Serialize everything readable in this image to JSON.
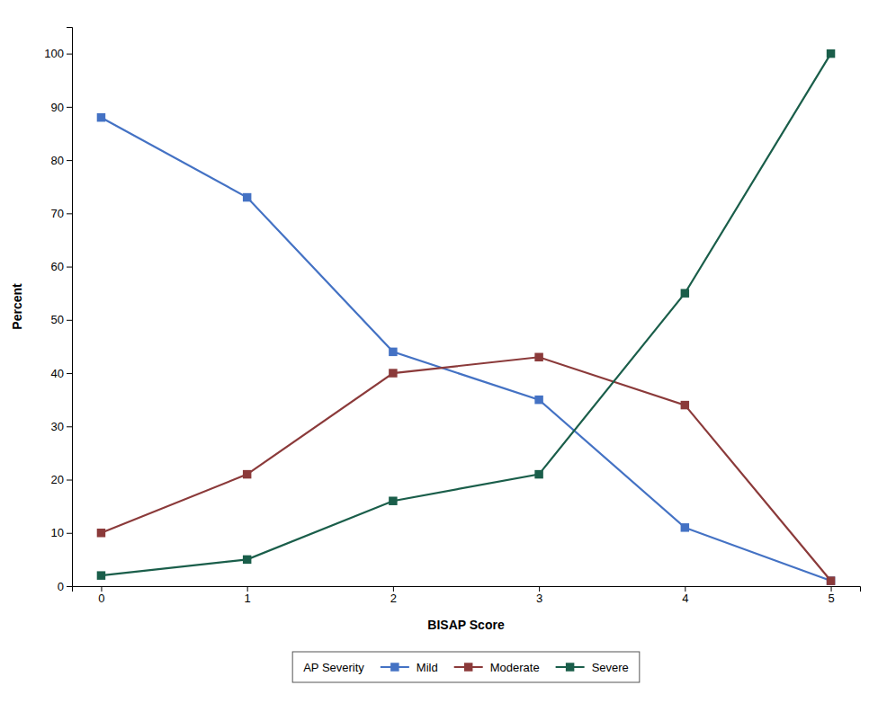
{
  "chart_data": {
    "type": "line",
    "xlabel": "BISAP Score",
    "ylabel": "Percent",
    "legend_title": "AP Severity",
    "x": [
      0,
      1,
      2,
      3,
      4,
      5
    ],
    "series": [
      {
        "name": "Mild",
        "color": "#4472C4",
        "values": [
          88,
          73,
          44,
          35,
          11,
          1
        ]
      },
      {
        "name": "Moderate",
        "color": "#8B3A3A",
        "values": [
          10,
          21,
          40,
          43,
          34,
          1
        ]
      },
      {
        "name": "Severe",
        "color": "#1A5E4A",
        "values": [
          2,
          5,
          16,
          21,
          55,
          100
        ]
      }
    ],
    "xlim": [
      -0.2,
      5.2
    ],
    "ylim": [
      0,
      105
    ],
    "xticks": [
      0,
      1,
      2,
      3,
      4,
      5
    ],
    "yticks": [
      0,
      10,
      20,
      30,
      40,
      50,
      60,
      70,
      80,
      90,
      100
    ],
    "marker": "square",
    "legend": "bottom",
    "grid": false
  }
}
